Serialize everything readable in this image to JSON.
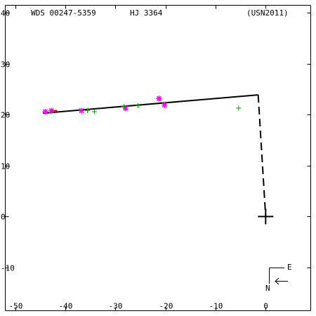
{
  "header": {
    "wds": "WDS 00247-5359",
    "disc": "HJ 3364",
    "ref": "(USN2011)"
  },
  "compass": {
    "east": "E",
    "north": "N"
  },
  "colors": {
    "axes": "#000000",
    "orbit": "#000000",
    "magenta": "#ff00ff",
    "green": "#00aa00",
    "red": "#ff0000"
  },
  "chart_data": {
    "type": "scatter",
    "title": "",
    "xlabel": "",
    "ylabel": "",
    "xlim": [
      -52,
      9
    ],
    "ylim": [
      -18.5,
      41.5
    ],
    "xticks": [
      -50,
      -40,
      -30,
      -20,
      -10,
      0
    ],
    "yticks": [
      -10,
      0,
      10,
      20,
      30,
      40
    ],
    "primary": {
      "x": 0,
      "y": 0,
      "marker": "large-plus"
    },
    "orbit_line": {
      "x": [
        -44.5,
        -1.5
      ],
      "y": [
        20.3,
        23.9
      ],
      "style": "solid"
    },
    "connector_line": {
      "x": [
        -1.5,
        0
      ],
      "y": [
        23.9,
        0
      ],
      "style": "dashed"
    },
    "series": [
      {
        "color": "magenta",
        "marker": "asterisk",
        "x": [
          -44.0,
          -42.8,
          -36.8,
          -28.0,
          -21.3,
          -20.2
        ],
        "y": [
          20.6,
          20.8,
          20.8,
          21.3,
          23.2,
          21.9
        ]
      },
      {
        "color": "green",
        "marker": "plus",
        "x": [
          -35.6,
          -34.2,
          -28.3,
          -25.5,
          -5.4
        ],
        "y": [
          20.8,
          20.6,
          21.6,
          21.8,
          21.3
        ]
      },
      {
        "color": "red",
        "marker": "dash",
        "x": [
          -42.2
        ],
        "y": [
          20.8
        ]
      }
    ]
  }
}
